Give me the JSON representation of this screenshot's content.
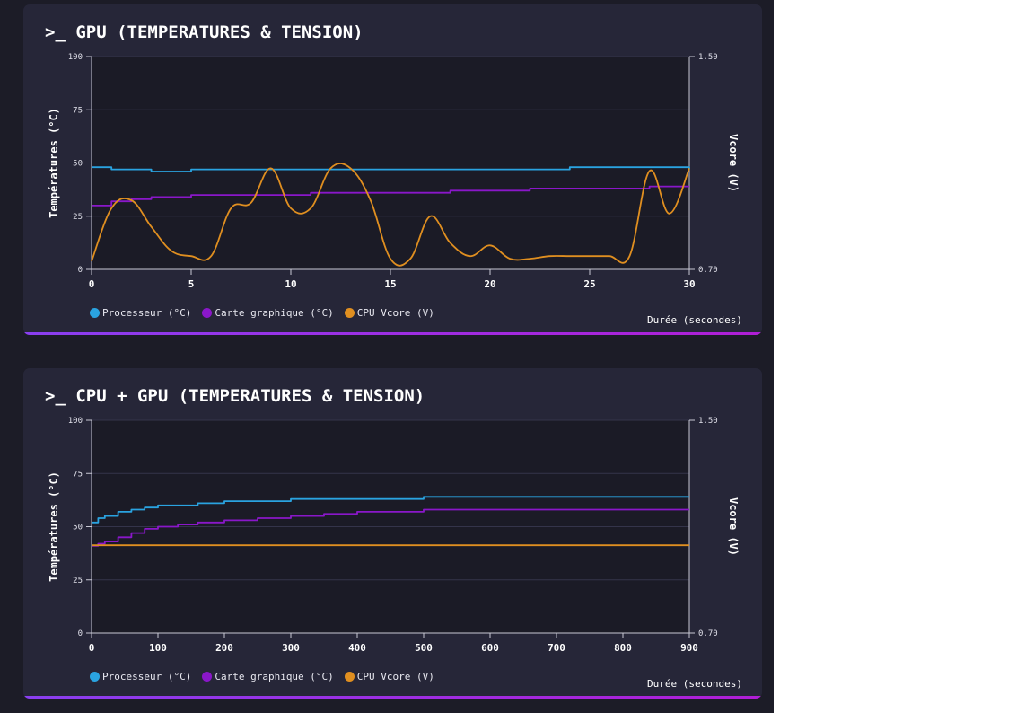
{
  "charts": [
    {
      "title": ">_ GPU (TEMPERATURES & TENSION)",
      "x_title": "Durée (secondes)",
      "y_left_title": "Températures (°C)",
      "y_right_title": "Vcore (V)",
      "legend": [
        "Processeur (°C)",
        "Carte graphique (°C)",
        "CPU Vcore (V)"
      ]
    },
    {
      "title": ">_ CPU + GPU (TEMPERATURES & TENSION)",
      "x_title": "Durée (secondes)",
      "y_left_title": "Températures (°C)",
      "y_right_title": "Vcore (V)",
      "legend": [
        "Processeur (°C)",
        "Carte graphique (°C)",
        "CPU Vcore (V)"
      ]
    }
  ],
  "colors": {
    "processor": "#2aa3e0",
    "gpu": "#8a17c9",
    "vcore": "#e08f20",
    "card_bg": "#262638",
    "plot_bg": "#1b1b26"
  },
  "chart_data": [
    {
      "type": "line",
      "title": "GPU (TEMPERATURES & TENSION)",
      "xlabel": "Durée (secondes)",
      "ylabel": "Températures (°C)",
      "y2label": "Vcore (V)",
      "xlim": [
        0,
        30
      ],
      "ylim": [
        0,
        100
      ],
      "y2lim": [
        0.7,
        1.5
      ],
      "x_ticks": [
        0,
        5,
        10,
        15,
        20,
        25,
        30
      ],
      "y_ticks": [
        0,
        25,
        50,
        75,
        100
      ],
      "y2_ticks": [
        "0.70",
        "1.50"
      ],
      "grid": true,
      "legend_position": "bottom-left",
      "series": [
        {
          "name": "Processeur (°C)",
          "axis": "left",
          "color": "#2aa3e0",
          "x": [
            0,
            1,
            2,
            3,
            4,
            5,
            6,
            7,
            8,
            9,
            10,
            11,
            12,
            13,
            14,
            15,
            16,
            17,
            18,
            19,
            20,
            21,
            22,
            23,
            24,
            25,
            26,
            27,
            28,
            29,
            30
          ],
          "values": [
            48,
            47,
            47,
            46,
            46,
            47,
            47,
            47,
            47,
            47,
            47,
            47,
            47,
            47,
            47,
            47,
            47,
            47,
            47,
            47,
            47,
            47,
            47,
            47,
            48,
            48,
            48,
            48,
            48,
            48,
            47
          ]
        },
        {
          "name": "Carte graphique (°C)",
          "axis": "left",
          "color": "#8a17c9",
          "x": [
            0,
            1,
            2,
            3,
            4,
            5,
            6,
            7,
            8,
            9,
            10,
            11,
            12,
            13,
            14,
            15,
            16,
            17,
            18,
            19,
            20,
            21,
            22,
            23,
            24,
            25,
            26,
            27,
            28,
            29,
            30
          ],
          "values": [
            30,
            32,
            33,
            34,
            34,
            35,
            35,
            35,
            35,
            35,
            35,
            36,
            36,
            36,
            36,
            36,
            36,
            36,
            37,
            37,
            37,
            37,
            38,
            38,
            38,
            38,
            38,
            38,
            39,
            39,
            39
          ]
        },
        {
          "name": "CPU Vcore (V)",
          "axis": "right",
          "color": "#e08f20",
          "x": [
            0,
            1,
            2,
            3,
            4,
            5,
            6,
            7,
            8,
            9,
            10,
            11,
            12,
            13,
            14,
            15,
            16,
            17,
            18,
            19,
            20,
            21,
            22,
            23,
            24,
            25,
            26,
            27,
            28,
            29,
            30
          ],
          "values": [
            0.73,
            0.93,
            0.96,
            0.86,
            0.77,
            0.75,
            0.75,
            0.93,
            0.95,
            1.08,
            0.93,
            0.93,
            1.08,
            1.08,
            0.96,
            0.74,
            0.74,
            0.9,
            0.8,
            0.75,
            0.79,
            0.74,
            0.74,
            0.75,
            0.75,
            0.75,
            0.75,
            0.75,
            1.07,
            0.91,
            1.08
          ]
        }
      ]
    },
    {
      "type": "line",
      "title": "CPU + GPU (TEMPERATURES & TENSION)",
      "xlabel": "Durée (secondes)",
      "ylabel": "Températures (°C)",
      "y2label": "Vcore (V)",
      "xlim": [
        0,
        900
      ],
      "ylim": [
        0,
        100
      ],
      "y2lim": [
        0.7,
        1.5
      ],
      "x_ticks": [
        0,
        100,
        200,
        300,
        400,
        500,
        600,
        700,
        800,
        900
      ],
      "y_ticks": [
        0,
        25,
        50,
        75,
        100
      ],
      "y2_ticks": [
        "0.70",
        "1.50"
      ],
      "grid": true,
      "legend_position": "bottom-left",
      "series": [
        {
          "name": "Processeur (°C)",
          "axis": "left",
          "color": "#2aa3e0",
          "x": [
            0,
            10,
            20,
            40,
            60,
            80,
            100,
            130,
            160,
            200,
            250,
            300,
            350,
            400,
            450,
            500,
            550,
            600,
            650,
            700,
            750,
            800,
            850,
            900
          ],
          "values": [
            52,
            54,
            55,
            57,
            58,
            59,
            60,
            60,
            61,
            62,
            62,
            63,
            63,
            63,
            63,
            64,
            64,
            64,
            64,
            64,
            64,
            64,
            64,
            64
          ]
        },
        {
          "name": "Carte graphique (°C)",
          "axis": "left",
          "color": "#8a17c9",
          "x": [
            0,
            10,
            20,
            40,
            60,
            80,
            100,
            130,
            160,
            200,
            250,
            300,
            350,
            400,
            450,
            500,
            550,
            600,
            650,
            700,
            750,
            800,
            850,
            900
          ],
          "values": [
            41,
            42,
            43,
            45,
            47,
            49,
            50,
            51,
            52,
            53,
            54,
            55,
            56,
            57,
            57,
            58,
            58,
            58,
            58,
            58,
            58,
            58,
            58,
            58
          ]
        },
        {
          "name": "CPU Vcore (V)",
          "axis": "right",
          "color": "#e08f20",
          "x": [
            0,
            100,
            200,
            300,
            400,
            500,
            600,
            700,
            800,
            900
          ],
          "values": [
            1.03,
            1.03,
            1.03,
            1.03,
            1.03,
            1.03,
            1.03,
            1.03,
            1.03,
            1.03
          ]
        }
      ]
    }
  ]
}
